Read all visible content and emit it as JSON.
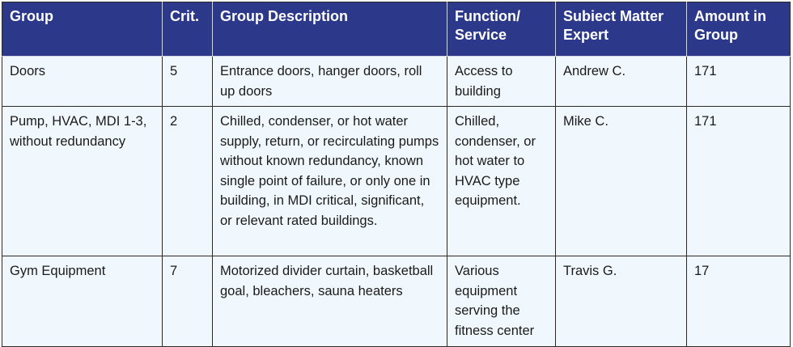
{
  "table": {
    "headers": [
      "Group",
      "Crit.",
      "Group Description",
      "Function/ Service",
      "Subiect Matter Expert",
      "Amount in Group"
    ],
    "rows": [
      [
        "Doors",
        "5",
        "Entrance doors, hanger doors, roll up doors",
        "Access to building",
        "Andrew C.",
        "171"
      ],
      [
        "Pump, HVAC, MDI 1-3, without redundancy",
        "2",
        "Chilled, condenser, or hot water supply, return, or recirculating pumps without known redundancy, known single point of failure, or only one in building, in MDI critical, significant, or relevant rated buildings.",
        "Chilled, condenser, or hot water to HVAC type equipment.",
        "Mike C.",
        "171"
      ],
      [
        "Gym Equipment",
        "7",
        "Motorized divider curtain, basketball goal, bleachers, sauna heaters",
        "Various equipment serving the fitness center",
        "Travis G.",
        "17"
      ]
    ]
  },
  "colors": {
    "header_bg": "#2c398b",
    "cell_bg": "#f1f8fd"
  }
}
